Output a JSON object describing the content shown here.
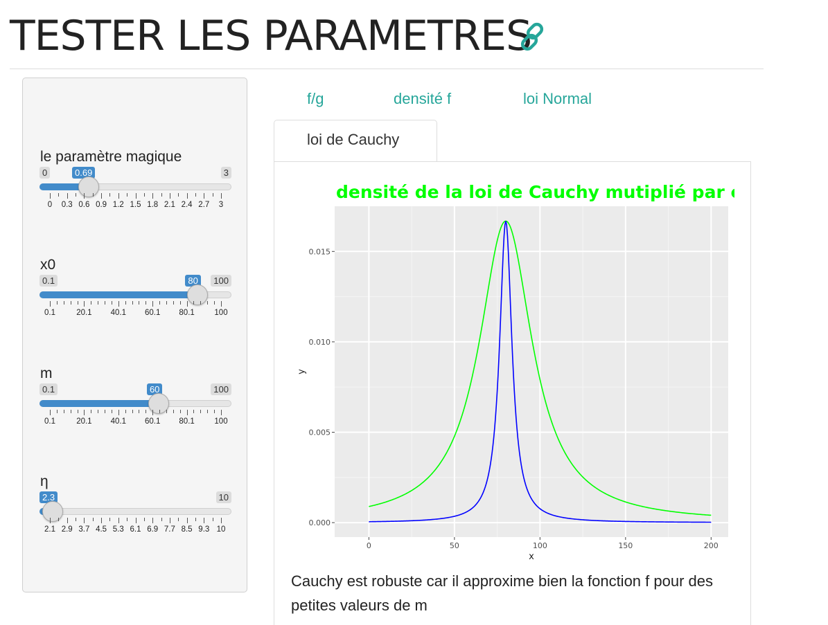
{
  "page": {
    "title": "TESTER LES PARAMETRES",
    "link_icon": "link-icon",
    "accent": "#26a69a"
  },
  "sidebar": {
    "sliders": [
      {
        "label": "le paramètre magique",
        "min": "0",
        "max": "3",
        "value": "0.69",
        "fraction": 0.23,
        "ticks": [
          "0",
          "0.3",
          "0.6",
          "0.9",
          "1.2",
          "1.5",
          "1.8",
          "2.1",
          "2.4",
          "2.7",
          "3"
        ]
      },
      {
        "label": "x0",
        "min": "0.1",
        "max": "100",
        "value": "80",
        "fraction": 0.8,
        "ticks": [
          "0.1",
          "20.1",
          "40.1",
          "60.1",
          "80.1",
          "100"
        ]
      },
      {
        "label": "m",
        "min": "0.1",
        "max": "100",
        "value": "60",
        "fraction": 0.6,
        "ticks": [
          "0.1",
          "20.1",
          "40.1",
          "60.1",
          "80.1",
          "100"
        ]
      },
      {
        "label": "η",
        "min": "",
        "max": "10",
        "value": "2.3",
        "fraction": 0.02,
        "ticks": [
          "2.1",
          "2.9",
          "3.7",
          "4.5",
          "5.3",
          "6.1",
          "6.9",
          "7.7",
          "8.5",
          "9.3",
          "10"
        ]
      }
    ],
    "slider_color": "#428bca"
  },
  "tabs": [
    {
      "label": "f/g",
      "active": false
    },
    {
      "label": "densité f",
      "active": false
    },
    {
      "label": "loi Normal",
      "active": false
    },
    {
      "label": "loi de Cauchy",
      "active": true
    }
  ],
  "chart_data": {
    "type": "line",
    "title": "densité de la loi de Cauchy mutiplié par c",
    "title_color": "#00ff00",
    "xlabel": "x",
    "ylabel": "y",
    "xlim": [
      -20,
      210
    ],
    "ylim": [
      -0.0008,
      0.0175
    ],
    "x_ticks": [
      "0",
      "50",
      "100",
      "150",
      "200"
    ],
    "y_ticks": [
      "0.000",
      "0.005",
      "0.010",
      "0.015"
    ],
    "grid": true,
    "background": "#ebebeb",
    "series": [
      {
        "color": "#00ff00",
        "x0": 80,
        "scale": 19,
        "peak": 0.01668,
        "x_range": [
          0,
          200
        ]
      },
      {
        "color": "#0000ff",
        "x0": 80,
        "scale": 4.4,
        "peak": 0.01668,
        "x_range": [
          0,
          200
        ]
      }
    ]
  },
  "caption": "Cauchy est robuste car il approxime bien la fonction f pour des petites valeurs de m"
}
